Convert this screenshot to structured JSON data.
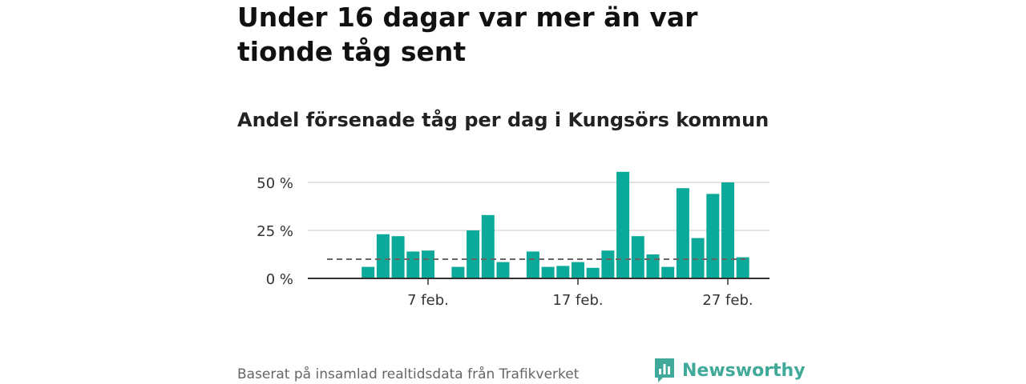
{
  "title": "Under 16 dagar var mer än var tionde tåg sent",
  "subtitle": "Andel försenade tåg per dag i Kungsörs kommun",
  "footer": "Baserat på insamlad realtidsdata från Trafikverket",
  "brand": "Newsworthy",
  "colors": {
    "bar": "#0ba99a",
    "reference_line": "#666666",
    "grid": "#d9d9d9",
    "logo": "#40a99a"
  },
  "chart_data": {
    "type": "bar",
    "x_unit": "day",
    "x_start": "2023-02-01",
    "x_end": "2023-02-28",
    "x_ticks": [
      {
        "day": 7,
        "label": "7 feb."
      },
      {
        "day": 17,
        "label": "17 feb."
      },
      {
        "day": 27,
        "label": "27 feb."
      }
    ],
    "y_ticks": [
      {
        "value": 0,
        "label": "0 %"
      },
      {
        "value": 25,
        "label": "25 %"
      },
      {
        "value": 50,
        "label": "50 %"
      }
    ],
    "ylim": [
      0,
      55
    ],
    "grid": true,
    "reference_line": {
      "value": 10,
      "style": "dashed"
    },
    "bars": [
      {
        "day": 3,
        "value": 6
      },
      {
        "day": 4,
        "value": 23
      },
      {
        "day": 5,
        "value": 22
      },
      {
        "day": 6,
        "value": 14
      },
      {
        "day": 7,
        "value": 14.5
      },
      {
        "day": 9,
        "value": 6
      },
      {
        "day": 10,
        "value": 25
      },
      {
        "day": 11,
        "value": 33
      },
      {
        "day": 12,
        "value": 8.5
      },
      {
        "day": 14,
        "value": 14
      },
      {
        "day": 15,
        "value": 6
      },
      {
        "day": 16,
        "value": 6.5
      },
      {
        "day": 17,
        "value": 8.5
      },
      {
        "day": 18,
        "value": 5.5
      },
      {
        "day": 19,
        "value": 14.5
      },
      {
        "day": 20,
        "value": 55.5
      },
      {
        "day": 21,
        "value": 22
      },
      {
        "day": 22,
        "value": 12.5
      },
      {
        "day": 23,
        "value": 6
      },
      {
        "day": 24,
        "value": 47
      },
      {
        "day": 25,
        "value": 21
      },
      {
        "day": 26,
        "value": 44
      },
      {
        "day": 27,
        "value": 50
      },
      {
        "day": 28,
        "value": 11
      }
    ]
  }
}
